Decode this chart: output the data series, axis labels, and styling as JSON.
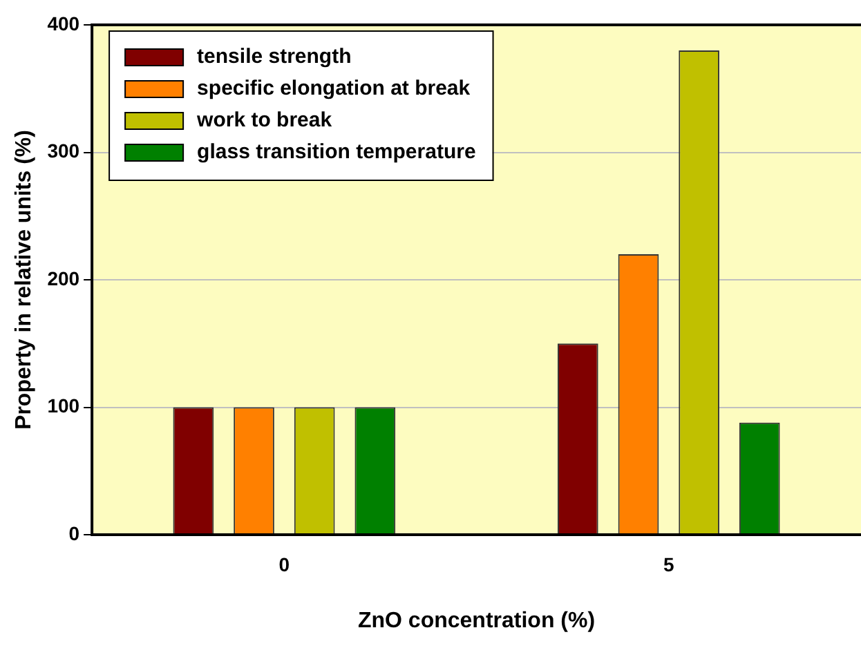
{
  "chart_data": {
    "type": "bar",
    "xlabel": "ZnO concentration (%)",
    "ylabel": "Property in relative units (%)",
    "categories": [
      "0",
      "5"
    ],
    "series": [
      {
        "name": "tensile strength",
        "color": "#800000",
        "values": [
          100,
          150
        ]
      },
      {
        "name": "specific elongation at break",
        "color": "#ff8000",
        "values": [
          100,
          220
        ]
      },
      {
        "name": "work to break",
        "color": "#c0c000",
        "values": [
          100,
          380
        ]
      },
      {
        "name": "glass transition temperature",
        "color": "#008000",
        "values": [
          100,
          88
        ]
      }
    ],
    "ylim": [
      0,
      400
    ],
    "yticks": [
      0,
      100,
      200,
      300,
      400
    ],
    "grid": "y",
    "legend": "top left"
  }
}
